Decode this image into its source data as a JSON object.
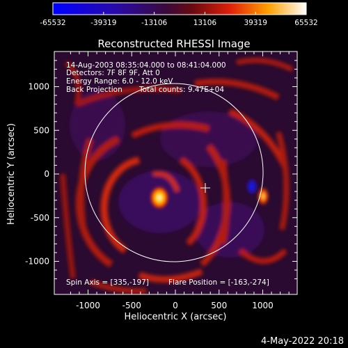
{
  "colorbar": {
    "tick_labels": [
      "-65532",
      "-39319",
      "-13106",
      "13106",
      "39319",
      "65532"
    ]
  },
  "plot": {
    "title": "Reconstructed RHESSI Image",
    "x_axis_label": "Heliocentric X (arcsec)",
    "y_axis_label": "Heliocentric Y (arcsec)",
    "x_ticks": [
      "-1000",
      "-500",
      "0",
      "500",
      "1000"
    ],
    "y_ticks": [
      "1000",
      "500",
      "0",
      "-500",
      "-1000"
    ]
  },
  "annotations": {
    "time_range": "14-Aug-2003 08:35:04.000 to 08:41:04.000",
    "detectors": "Detectors: 7F 8F 9F, Att 0",
    "energy_range": "Energy Range: 6.0 - 12.0 keV",
    "method": "Back Projection",
    "total_counts": "Total counts: 9.47E+04",
    "spin_axis": "Spin Axis = [335,-197]",
    "flare_position": "Flare Position = [-163,-274]"
  },
  "footer": {
    "date_stamp": "4-May-2022 20:18"
  },
  "colors": {
    "background": "#000000",
    "text": "#ffffff",
    "colormap": [
      "#0000ff",
      "#1a0033",
      "#4a1a6e",
      "#e83a14",
      "#ff9a00",
      "#ffffff"
    ]
  }
}
